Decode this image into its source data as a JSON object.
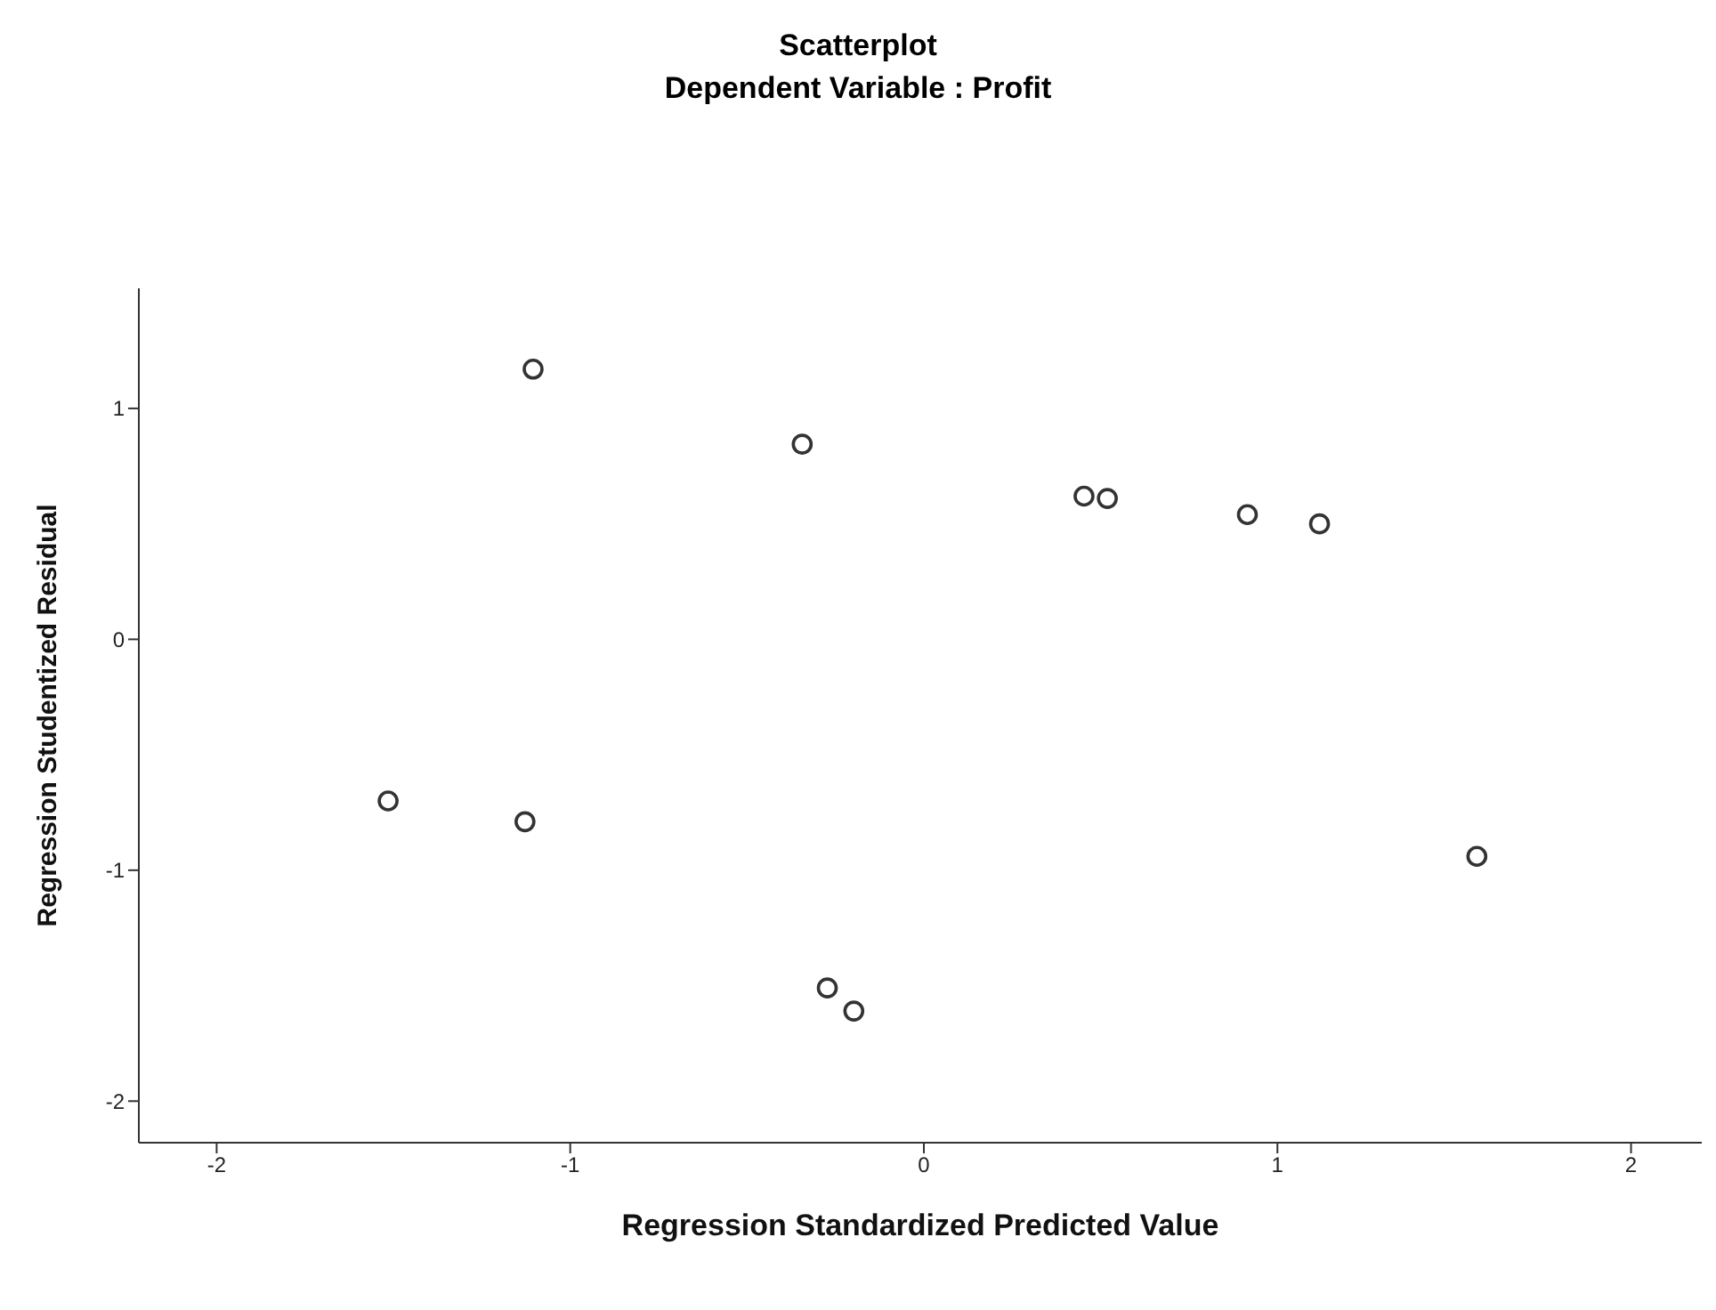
{
  "chart_data": {
    "type": "scatter",
    "title": "Scatterplot",
    "subtitle": "Dependent Variable : Profit",
    "xlabel": "Regression Standardized Predicted Value",
    "ylabel": "Regression Studentized Residual",
    "x": [
      -1.515,
      -1.105,
      -1.128,
      -0.344,
      -0.273,
      -0.198,
      0.453,
      0.519,
      0.915,
      1.119,
      1.564
    ],
    "values": [
      -0.7,
      1.17,
      -0.79,
      0.845,
      -1.51,
      -1.61,
      0.62,
      0.61,
      0.54,
      0.5,
      -0.94
    ],
    "color": "#333333",
    "marker": "circle",
    "xlim": [
      -2.22,
      2.2
    ],
    "xticks": [
      -2,
      -1,
      0,
      1,
      2
    ],
    "ylim": [
      -2.18,
      1.52
    ],
    "yticks": [
      -2,
      -1,
      0,
      1
    ],
    "grid": false,
    "legend": false
  }
}
